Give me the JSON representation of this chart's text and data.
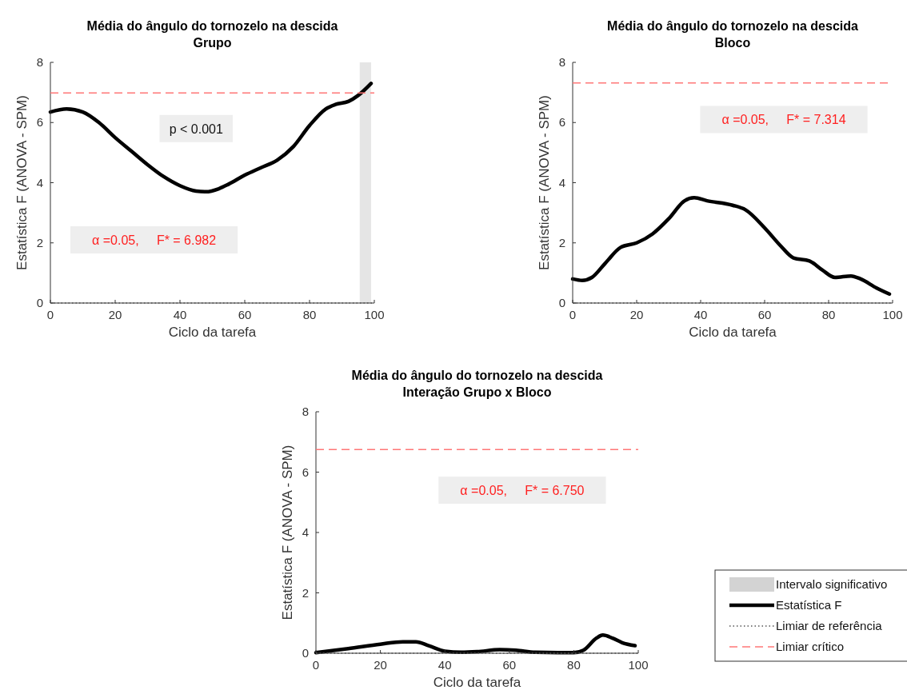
{
  "chart_data": [
    {
      "type": "line",
      "title": "Média do ângulo do tornozelo na descida",
      "subtitle": "Grupo",
      "xlabel": "Ciclo da tarefa",
      "ylabel": "Estatística F (ANOVA - SPM)",
      "xlim": [
        0,
        100
      ],
      "ylim": [
        0,
        8
      ],
      "xticks": [
        0,
        20,
        40,
        60,
        80,
        100
      ],
      "yticks": [
        0,
        2,
        4,
        6,
        8
      ],
      "series": [
        {
          "color": "#000000",
          "x": [
            0,
            5,
            10,
            15,
            20,
            25,
            30,
            35,
            40,
            45,
            48,
            52,
            55,
            60,
            65,
            70,
            75,
            80,
            85,
            88,
            92,
            95,
            99
          ],
          "values": [
            6.35,
            6.45,
            6.35,
            6.0,
            5.5,
            5.05,
            4.6,
            4.2,
            3.9,
            3.72,
            3.7,
            3.8,
            3.95,
            4.25,
            4.5,
            4.75,
            5.2,
            5.9,
            6.45,
            6.6,
            6.7,
            6.9,
            7.3
          ]
        }
      ],
      "ref_lines": [
        {
          "axis": "y",
          "value": 0,
          "line_style": "dotted",
          "color": "#555555"
        },
        {
          "axis": "y",
          "value": 6.982,
          "line_style": "dashed",
          "color": "#ff7777"
        }
      ],
      "bands": [
        {
          "axis": "x",
          "from": 95.5,
          "to": 99,
          "label": "Intervalo significativo",
          "color": "#d3d3d3"
        }
      ],
      "annotations": [
        "p < 0.001",
        "α =0.05,     F* = 6.982"
      ]
    },
    {
      "type": "line",
      "title": "Média do ângulo do tornozelo na descida",
      "subtitle": "Bloco",
      "xlabel": "Ciclo da tarefa",
      "ylabel": "Estatística F (ANOVA - SPM)",
      "xlim": [
        0,
        100
      ],
      "ylim": [
        0,
        8
      ],
      "xticks": [
        0,
        20,
        40,
        60,
        80,
        100
      ],
      "yticks": [
        0,
        2,
        4,
        6,
        8
      ],
      "series": [
        {
          "color": "#000000",
          "x": [
            0,
            3,
            6,
            10,
            15,
            20,
            25,
            30,
            35,
            38,
            42,
            50,
            54,
            60,
            65,
            69,
            74,
            78,
            82,
            87,
            90,
            95,
            99
          ],
          "values": [
            0.8,
            0.75,
            0.85,
            1.3,
            1.85,
            2.0,
            2.3,
            2.8,
            3.4,
            3.5,
            3.4,
            3.25,
            3.1,
            2.5,
            1.9,
            1.5,
            1.4,
            1.1,
            0.85,
            0.9,
            0.8,
            0.5,
            0.3
          ]
        }
      ],
      "ref_lines": [
        {
          "axis": "y",
          "value": 0,
          "line_style": "dotted",
          "color": "#555555"
        },
        {
          "axis": "y",
          "value": 7.314,
          "line_style": "dashed",
          "color": "#ff7777"
        }
      ],
      "annotations": [
        "α =0.05,     F* = 7.314"
      ]
    },
    {
      "type": "line",
      "title": "Média do ângulo do tornozelo na descida",
      "subtitle": "Interação Grupo x Bloco",
      "xlabel": "Ciclo da tarefa",
      "ylabel": "Estatística F (ANOVA - SPM)",
      "xlim": [
        0,
        100
      ],
      "ylim": [
        0,
        8
      ],
      "xticks": [
        0,
        20,
        40,
        60,
        80,
        100
      ],
      "yticks": [
        0,
        2,
        4,
        6,
        8
      ],
      "legend": "right",
      "series": [
        {
          "name": "Estatística F",
          "color": "#000000",
          "x": [
            0,
            10,
            20,
            27,
            31,
            35,
            40,
            45,
            50,
            57,
            62,
            68,
            75,
            80,
            83,
            87,
            89,
            92,
            95,
            99
          ],
          "values": [
            0.02,
            0.15,
            0.3,
            0.38,
            0.38,
            0.25,
            0.07,
            0.03,
            0.05,
            0.12,
            0.1,
            0.03,
            0.02,
            0.02,
            0.1,
            0.5,
            0.6,
            0.5,
            0.35,
            0.25
          ]
        }
      ],
      "ref_lines": [
        {
          "axis": "y",
          "value": 0,
          "line_style": "dotted",
          "color": "#555555",
          "label": "Limiar de referência"
        },
        {
          "axis": "y",
          "value": 6.75,
          "line_style": "dashed",
          "color": "#ff7777",
          "label": "Limiar crítico"
        }
      ],
      "annotations": [
        "α =0.05,     F* = 6.750"
      ]
    }
  ]
}
